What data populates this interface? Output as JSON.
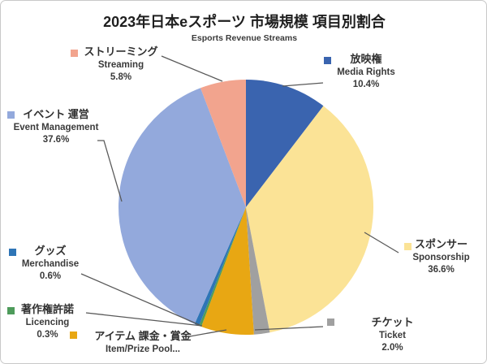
{
  "title": "2023年日本eスポーツ 市場規模 項目別割合",
  "subtitle": "Esports Revenue Streams",
  "chart_data": {
    "type": "pie",
    "title": "2023年日本eスポーツ 市場規模 項目別割合",
    "subtitle": "Esports Revenue Streams",
    "start_angle_deg": 0,
    "direction": "clockwise",
    "legend_position": "callout-labels",
    "segments": [
      {
        "jp": "放映権",
        "en": "Media Rights",
        "pct_label": "10.4%",
        "value": 10.4,
        "color": "#3A64AF"
      },
      {
        "jp": "スポンサー",
        "en": "Sponsorship",
        "pct_label": "36.6%",
        "value": 36.6,
        "color": "#FBE396"
      },
      {
        "jp": "チケット",
        "en": "Ticket",
        "pct_label": "2.0%",
        "value": 2.0,
        "color": "#A0A0A0"
      },
      {
        "jp": "アイテム 課金・賞金",
        "en": "Item/Prize Pool...",
        "pct_label": "",
        "value": 6.7,
        "color": "#E8A713"
      },
      {
        "jp": "著作権許諾",
        "en": "Licencing",
        "pct_label": "0.3%",
        "value": 0.3,
        "color": "#4E9B5B"
      },
      {
        "jp": "グッズ",
        "en": "Merchandise",
        "pct_label": "0.6%",
        "value": 0.6,
        "color": "#2E75B6"
      },
      {
        "jp": "イベント 運営",
        "en": "Event Management",
        "pct_label": "37.6%",
        "value": 37.6,
        "color": "#93A9DC"
      },
      {
        "jp": "ストリーミング",
        "en": "Streaming",
        "pct_label": "5.8%",
        "value": 5.8,
        "color": "#F2A48E"
      }
    ]
  }
}
